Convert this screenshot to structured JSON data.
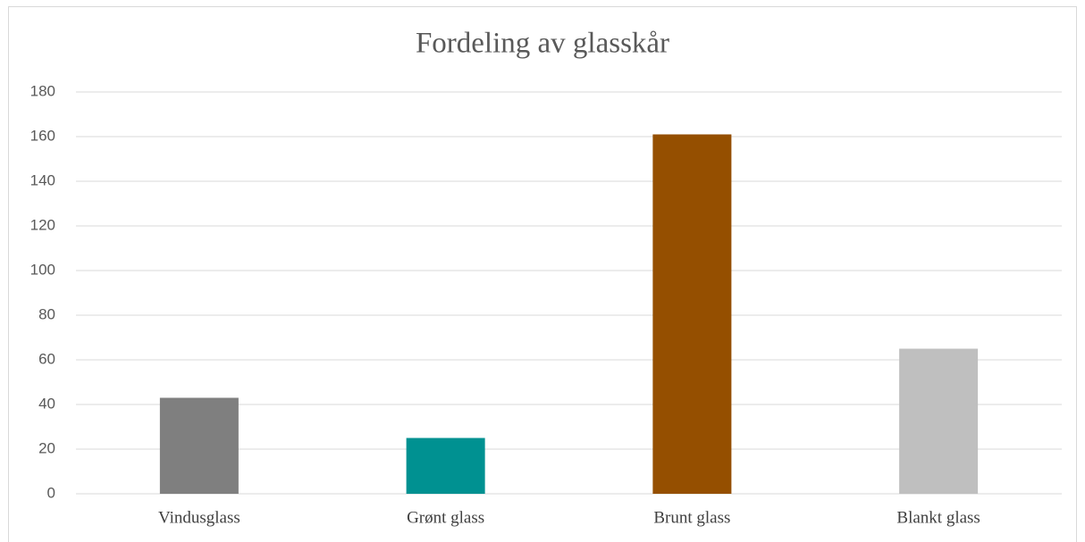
{
  "chart_data": {
    "type": "bar",
    "title": "Fordeling av glasskår",
    "categories": [
      "Vindusglass",
      "Grønt glass",
      "Brunt glass",
      "Blankt glass"
    ],
    "values": [
      43,
      25,
      161,
      65
    ],
    "colors": [
      "#7f7f7f",
      "#009191",
      "#954f00",
      "#bfbfbf"
    ],
    "ylim": [
      0,
      180
    ],
    "yticks": [
      0,
      20,
      40,
      60,
      80,
      100,
      120,
      140,
      160,
      180
    ],
    "grid": true
  }
}
